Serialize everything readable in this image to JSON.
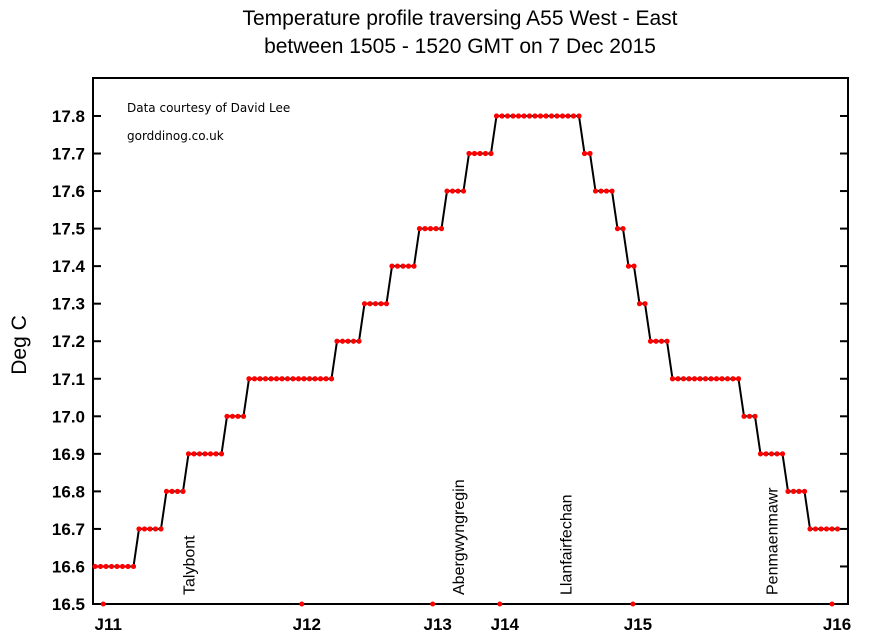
{
  "chart_data": {
    "type": "line",
    "title": "Temperature profile traversing A55  West - East",
    "subtitle": "between  1505 - 1520 GMT   on 7 Dec 2015",
    "xlabel": "",
    "ylabel": "Deg C",
    "ylim": [
      16.5,
      17.9
    ],
    "yticks": [
      "16.5",
      "16.6",
      "16.7",
      "16.8",
      "16.9",
      "17.0",
      "17.1",
      "17.2",
      "17.3",
      "17.4",
      "17.5",
      "17.6",
      "17.7",
      "17.8"
    ],
    "grid": false,
    "line_color": "#000000",
    "marker_color": "#ff0000",
    "annotations": [
      "Data courtesy of David Lee",
      "gorddinog.co.uk"
    ],
    "steps": [
      [
        16.6,
        8
      ],
      [
        16.7,
        5
      ],
      [
        16.8,
        4
      ],
      [
        16.9,
        7
      ],
      [
        17.0,
        4
      ],
      [
        17.1,
        16
      ],
      [
        17.2,
        5
      ],
      [
        17.3,
        5
      ],
      [
        17.4,
        5
      ],
      [
        17.5,
        5
      ],
      [
        17.6,
        4
      ],
      [
        17.7,
        5
      ],
      [
        17.8,
        16
      ],
      [
        17.7,
        2
      ],
      [
        17.6,
        4
      ],
      [
        17.5,
        2
      ],
      [
        17.4,
        2
      ],
      [
        17.3,
        2
      ],
      [
        17.2,
        4
      ],
      [
        17.1,
        13
      ],
      [
        17.0,
        3
      ],
      [
        16.9,
        5
      ],
      [
        16.8,
        4
      ],
      [
        16.7,
        6
      ]
    ],
    "junctions": [
      {
        "label": "J11",
        "x": 1.5
      },
      {
        "label": "J12",
        "x": 37.6
      },
      {
        "label": "J13",
        "x": 61.4
      },
      {
        "label": "J14",
        "x": 73.6
      },
      {
        "label": "J15",
        "x": 97.8
      },
      {
        "label": "J16",
        "x": 134
      }
    ],
    "places": [
      {
        "label": "Talybont",
        "x": 17
      },
      {
        "label": "Abergwyngregin",
        "x": 66
      },
      {
        "label": "Llanfairfechan",
        "x": 85.5
      },
      {
        "label": "Penmaenmawr",
        "x": 123
      }
    ]
  }
}
